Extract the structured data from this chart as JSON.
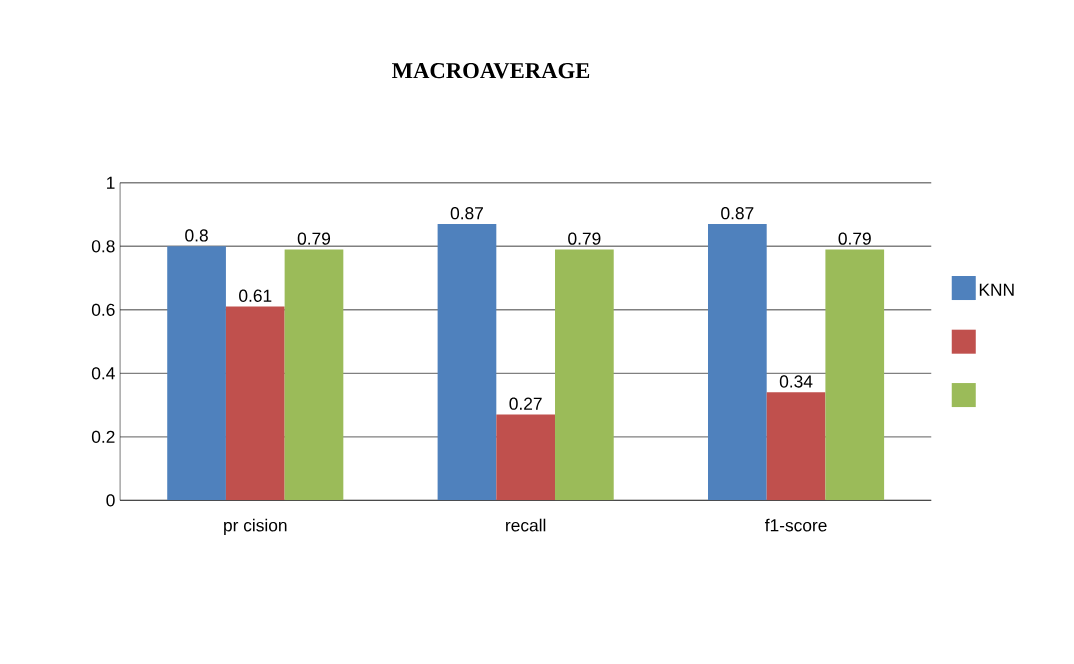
{
  "chart_data": {
    "type": "bar",
    "title": "MACROAVERAGE",
    "categories": [
      "pr cision",
      "recall",
      "f1-score"
    ],
    "series": [
      {
        "name": "KNN",
        "color": "#4f81bd",
        "values": [
          0.8,
          0.87,
          0.87
        ],
        "value_labels": [
          "0.8",
          "0.87",
          "0.87"
        ]
      },
      {
        "color": "#c0504d",
        "values": [
          0.61,
          0.27,
          0.34
        ],
        "value_labels": [
          "0.61",
          "0.27",
          "0.34"
        ]
      },
      {
        "color": "#9bbb59",
        "values": [
          0.79,
          0.79,
          0.79
        ],
        "value_labels": [
          "0.79",
          "0.79",
          "0.79"
        ]
      }
    ],
    "ylim": [
      0,
      1
    ],
    "yticks": [
      0,
      0.2,
      0.4,
      0.6,
      0.8,
      1
    ],
    "grid": "y",
    "legend": "right"
  }
}
